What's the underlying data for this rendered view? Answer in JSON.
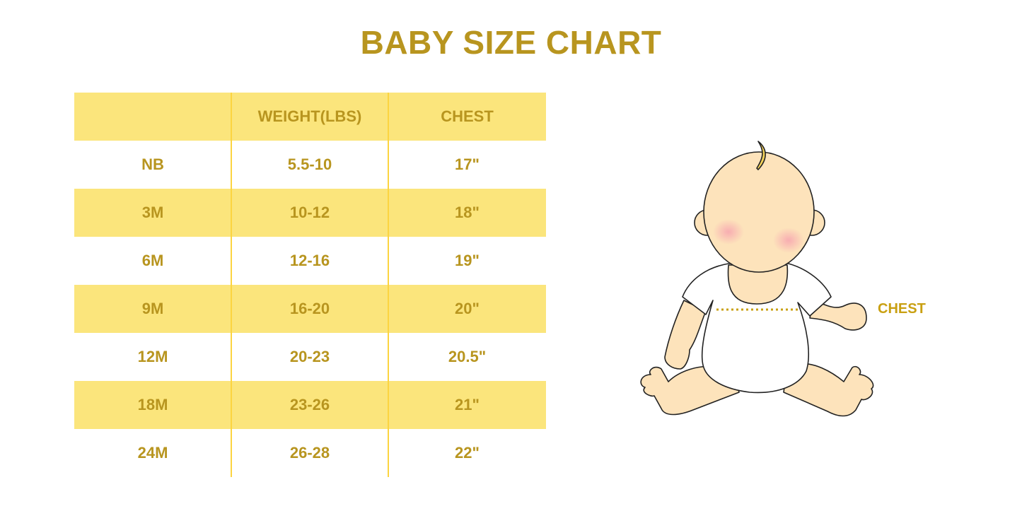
{
  "title": "BABY SIZE CHART",
  "table": {
    "headers": [
      "",
      "WEIGHT(LBS)",
      "CHEST"
    ],
    "rows": [
      [
        "NB",
        "5.5-10",
        "17\""
      ],
      [
        "3M",
        "10-12",
        "18\""
      ],
      [
        "6M",
        "12-16",
        "19\""
      ],
      [
        "9M",
        "16-20",
        "20\""
      ],
      [
        "12M",
        "20-23",
        "20.5\""
      ],
      [
        "18M",
        "23-26",
        "21\""
      ],
      [
        "24M",
        "26-28",
        "22\""
      ]
    ]
  },
  "illustration": {
    "name": "baby-illustration",
    "chest_label": "CHEST"
  },
  "colors": {
    "text_gold": "#b8951f",
    "row_yellow": "#fbe57c",
    "divider": "#fcd440",
    "skin": "#fde3bb"
  }
}
